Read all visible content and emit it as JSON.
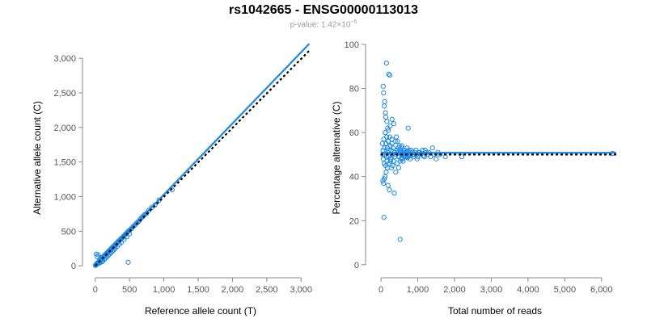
{
  "figure": {
    "title": "rs1042665 - ENSG00000113013",
    "pvalue_prefix": "p-value: 1.42×10",
    "pvalue_exponent": "−5"
  },
  "colors": {
    "points": "#1e88e5",
    "fit": "#1e88e5",
    "reference": "#000000"
  },
  "chart_data": [
    {
      "type": "scatter",
      "title": "",
      "xlabel": "Reference allele count (T)",
      "ylabel": "Alternative allele count (C)",
      "xlim": [
        -80,
        3150
      ],
      "ylim": [
        -80,
        3200
      ],
      "xticks": [
        0,
        500,
        1000,
        1500,
        2000,
        2500,
        3000
      ],
      "xtick_labels": [
        "0",
        "500",
        "1,000",
        "1,500",
        "2,000",
        "2,500",
        "3,000"
      ],
      "yticks": [
        0,
        500,
        1000,
        1500,
        2000,
        2500,
        3000
      ],
      "ytick_labels": [
        "0",
        "500",
        "1,000",
        "1,500",
        "2,000",
        "2,500",
        "3,000"
      ],
      "fit_line": {
        "from": [
          0,
          0
        ],
        "to": [
          3120,
          3210
        ],
        "style": "solid"
      },
      "reference_line": {
        "from": [
          0,
          0
        ],
        "to": [
          3120,
          3110
        ],
        "style": "dashed"
      },
      "points": [
        [
          3,
          5
        ],
        [
          5,
          8
        ],
        [
          8,
          12
        ],
        [
          10,
          15
        ],
        [
          12,
          10
        ],
        [
          15,
          18
        ],
        [
          18,
          22
        ],
        [
          20,
          25
        ],
        [
          22,
          18
        ],
        [
          25,
          30
        ],
        [
          28,
          35
        ],
        [
          30,
          40
        ],
        [
          32,
          28
        ],
        [
          35,
          42
        ],
        [
          38,
          45
        ],
        [
          40,
          36
        ],
        [
          42,
          50
        ],
        [
          45,
          52
        ],
        [
          48,
          44
        ],
        [
          50,
          60
        ],
        [
          52,
          55
        ],
        [
          55,
          65
        ],
        [
          58,
          62
        ],
        [
          60,
          70
        ],
        [
          62,
          58
        ],
        [
          65,
          75
        ],
        [
          68,
          72
        ],
        [
          70,
          80
        ],
        [
          72,
          66
        ],
        [
          75,
          85
        ],
        [
          78,
          90
        ],
        [
          80,
          120
        ],
        [
          82,
          95
        ],
        [
          85,
          100
        ],
        [
          88,
          92
        ],
        [
          90,
          105
        ],
        [
          92,
          98
        ],
        [
          95,
          110
        ],
        [
          98,
          115
        ],
        [
          100,
          108
        ],
        [
          105,
          120
        ],
        [
          110,
          125
        ],
        [
          115,
          118
        ],
        [
          120,
          135
        ],
        [
          125,
          140
        ],
        [
          130,
          132
        ],
        [
          135,
          150
        ],
        [
          140,
          155
        ],
        [
          145,
          148
        ],
        [
          150,
          165
        ],
        [
          155,
          170
        ],
        [
          160,
          162
        ],
        [
          165,
          180
        ],
        [
          170,
          185
        ],
        [
          175,
          178
        ],
        [
          180,
          195
        ],
        [
          185,
          200
        ],
        [
          190,
          192
        ],
        [
          195,
          210
        ],
        [
          200,
          215
        ],
        [
          205,
          208
        ],
        [
          210,
          225
        ],
        [
          215,
          230
        ],
        [
          220,
          222
        ],
        [
          225,
          240
        ],
        [
          230,
          245
        ],
        [
          235,
          238
        ],
        [
          240,
          255
        ],
        [
          245,
          260
        ],
        [
          250,
          252
        ],
        [
          255,
          270
        ],
        [
          260,
          275
        ],
        [
          265,
          268
        ],
        [
          270,
          285
        ],
        [
          275,
          290
        ],
        [
          280,
          282
        ],
        [
          285,
          300
        ],
        [
          290,
          305
        ],
        [
          295,
          298
        ],
        [
          300,
          315
        ],
        [
          310,
          325
        ],
        [
          320,
          335
        ],
        [
          330,
          345
        ],
        [
          340,
          355
        ],
        [
          350,
          365
        ],
        [
          360,
          375
        ],
        [
          370,
          380
        ],
        [
          380,
          395
        ],
        [
          390,
          405
        ],
        [
          400,
          410
        ],
        [
          410,
          425
        ],
        [
          420,
          435
        ],
        [
          430,
          445
        ],
        [
          440,
          455
        ],
        [
          450,
          465
        ],
        [
          460,
          470
        ],
        [
          470,
          485
        ],
        [
          480,
          495
        ],
        [
          490,
          505
        ],
        [
          500,
          515
        ],
        [
          520,
          530
        ],
        [
          540,
          555
        ],
        [
          560,
          575
        ],
        [
          580,
          590
        ],
        [
          600,
          615
        ],
        [
          620,
          630
        ],
        [
          640,
          650
        ],
        [
          660,
          680
        ],
        [
          680,
          700
        ],
        [
          700,
          720
        ],
        [
          720,
          740
        ],
        [
          750,
          760
        ],
        [
          780,
          800
        ],
        [
          820,
          840
        ],
        [
          870,
          880
        ],
        [
          930,
          950
        ],
        [
          1120,
          1100
        ],
        [
          480,
          50
        ],
        [
          15,
          170
        ],
        [
          30,
          130
        ],
        [
          40,
          160
        ],
        [
          60,
          40
        ],
        [
          70,
          45
        ],
        [
          100,
          60
        ],
        [
          110,
          70
        ],
        [
          130,
          90
        ],
        [
          150,
          110
        ],
        [
          170,
          130
        ],
        [
          190,
          150
        ],
        [
          210,
          170
        ],
        [
          230,
          190
        ],
        [
          250,
          210
        ],
        [
          270,
          230
        ],
        [
          290,
          250
        ],
        [
          320,
          280
        ],
        [
          350,
          310
        ],
        [
          380,
          340
        ],
        [
          420,
          380
        ],
        [
          460,
          420
        ],
        [
          500,
          460
        ]
      ]
    },
    {
      "type": "scatter",
      "title": "",
      "xlabel": "Total number of reads",
      "ylabel": "Percentage alternative (C)",
      "xlim": [
        -200,
        6400
      ],
      "ylim": [
        -3,
        100
      ],
      "xticks": [
        0,
        1000,
        2000,
        3000,
        4000,
        5000,
        6000
      ],
      "xtick_labels": [
        "0",
        "1,000",
        "2,000",
        "3,000",
        "4,000",
        "5,000",
        "6,000"
      ],
      "yticks": [
        0,
        20,
        40,
        60,
        80,
        100
      ],
      "ytick_labels": [
        "0",
        "20",
        "40",
        "60",
        "80",
        "100"
      ],
      "fit_line": {
        "from": [
          0,
          50.8
        ],
        "to": [
          6400,
          50.8
        ],
        "style": "solid"
      },
      "reference_line": {
        "from": [
          0,
          50.0
        ],
        "to": [
          6400,
          50.0
        ],
        "style": "dashed"
      },
      "points": [
        [
          80,
          21.5
        ],
        [
          150,
          91.5
        ],
        [
          210,
          86.5
        ],
        [
          240,
          86
        ],
        [
          520,
          11.5
        ],
        [
          60,
          81
        ],
        [
          70,
          78
        ],
        [
          90,
          72
        ],
        [
          100,
          74
        ],
        [
          120,
          69
        ],
        [
          130,
          67
        ],
        [
          160,
          65
        ],
        [
          180,
          62
        ],
        [
          200,
          61
        ],
        [
          250,
          63
        ],
        [
          300,
          66
        ],
        [
          350,
          64
        ],
        [
          740,
          62
        ],
        [
          50,
          38
        ],
        [
          70,
          37
        ],
        [
          90,
          39
        ],
        [
          110,
          40
        ],
        [
          140,
          42
        ],
        [
          170,
          44
        ],
        [
          190,
          36
        ],
        [
          230,
          34
        ],
        [
          360,
          32.5
        ],
        [
          260,
          47
        ],
        [
          300,
          55
        ],
        [
          320,
          45
        ],
        [
          400,
          42
        ],
        [
          420,
          58
        ],
        [
          450,
          56
        ],
        [
          480,
          44
        ],
        [
          500,
          54
        ],
        [
          540,
          48
        ],
        [
          560,
          53
        ],
        [
          600,
          47
        ],
        [
          640,
          52
        ],
        [
          680,
          49
        ],
        [
          700,
          51.5
        ],
        [
          720,
          48.5
        ],
        [
          760,
          52
        ],
        [
          800,
          49.5
        ],
        [
          850,
          51
        ],
        [
          900,
          50
        ],
        [
          950,
          52
        ],
        [
          1000,
          49
        ],
        [
          1050,
          51
        ],
        [
          1100,
          50.5
        ],
        [
          1150,
          49.5
        ],
        [
          1200,
          52
        ],
        [
          1250,
          50
        ],
        [
          1300,
          51
        ],
        [
          1350,
          49
        ],
        [
          1400,
          53
        ],
        [
          1450,
          50
        ],
        [
          1500,
          48
        ],
        [
          1550,
          51
        ],
        [
          1600,
          50
        ],
        [
          1750,
          49
        ],
        [
          2200,
          49
        ],
        [
          6300,
          50.5
        ],
        [
          40,
          55
        ],
        [
          45,
          50
        ],
        [
          55,
          52
        ],
        [
          65,
          48
        ],
        [
          75,
          57
        ],
        [
          85,
          46
        ],
        [
          95,
          53
        ],
        [
          105,
          50
        ],
        [
          115,
          60
        ],
        [
          125,
          45
        ],
        [
          135,
          55
        ],
        [
          145,
          49
        ],
        [
          155,
          58
        ],
        [
          165,
          47
        ],
        [
          175,
          53
        ],
        [
          185,
          51
        ],
        [
          195,
          56
        ],
        [
          205,
          49
        ],
        [
          215,
          52
        ],
        [
          225,
          46
        ],
        [
          235,
          58
        ],
        [
          245,
          50
        ],
        [
          255,
          54
        ],
        [
          265,
          48
        ],
        [
          275,
          52
        ],
        [
          285,
          44
        ],
        [
          295,
          57
        ],
        [
          310,
          50
        ],
        [
          330,
          53
        ],
        [
          340,
          47
        ],
        [
          370,
          51
        ],
        [
          380,
          49
        ],
        [
          390,
          56
        ],
        [
          410,
          50
        ],
        [
          430,
          52
        ],
        [
          440,
          46
        ],
        [
          460,
          51
        ],
        [
          470,
          53
        ],
        [
          490,
          49
        ],
        [
          510,
          52
        ],
        [
          520,
          47
        ],
        [
          530,
          51
        ],
        [
          550,
          50
        ],
        [
          570,
          54
        ],
        [
          580,
          48
        ],
        [
          590,
          51
        ],
        [
          610,
          50
        ],
        [
          620,
          52
        ],
        [
          650,
          49
        ],
        [
          670,
          51
        ],
        [
          690,
          50
        ],
        [
          710,
          53
        ],
        [
          730,
          49
        ],
        [
          750,
          50
        ],
        [
          770,
          51
        ],
        [
          790,
          48
        ],
        [
          820,
          52
        ],
        [
          860,
          50
        ],
        [
          880,
          49
        ],
        [
          920,
          51
        ],
        [
          960,
          50
        ],
        [
          980,
          48
        ],
        [
          1020,
          51
        ],
        [
          1080,
          50
        ],
        [
          1130,
          52
        ],
        [
          1180,
          49
        ],
        [
          1230,
          51
        ]
      ]
    }
  ]
}
